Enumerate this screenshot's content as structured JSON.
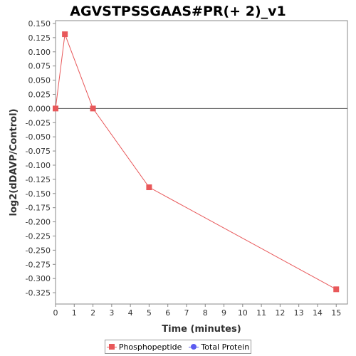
{
  "chart_data": {
    "type": "line",
    "title": "AGVSTPSSGAAS#PR(+ 2)_v1",
    "xlabel": "Time (minutes)",
    "ylabel": "log2(dDAVP/Control)",
    "xlim": [
      0,
      15.6
    ],
    "ylim": [
      -0.345,
      0.155
    ],
    "x_ticks": [
      0,
      1,
      2,
      3,
      4,
      5,
      6,
      7,
      8,
      9,
      10,
      11,
      12,
      13,
      14,
      15
    ],
    "y_ticks": [
      0.15,
      0.125,
      0.1,
      0.075,
      0.05,
      0.025,
      0.0,
      -0.025,
      -0.05,
      -0.075,
      -0.1,
      -0.125,
      -0.15,
      -0.175,
      -0.2,
      -0.225,
      -0.25,
      -0.275,
      -0.3,
      -0.325
    ],
    "y_tick_labels": [
      "0.150",
      "0.125",
      "0.100",
      "0.075",
      "0.050",
      "0.025",
      "0.000",
      "-0.025",
      "-0.050",
      "-0.075",
      "-0.100",
      "-0.125",
      "-0.150",
      "-0.175",
      "-0.200",
      "-0.225",
      "-0.250",
      "-0.275",
      "-0.300",
      "-0.325"
    ],
    "reference_line_y": 0,
    "grid": false,
    "legend_position": "bottom",
    "series": [
      {
        "name": "Phosphopeptide",
        "color": "#e8585a",
        "marker": "square",
        "x": [
          0,
          0.5,
          2,
          5,
          15
        ],
        "y": [
          0.0,
          0.131,
          0.0,
          -0.139,
          -0.319
        ]
      },
      {
        "name": "Total Protein",
        "color": "#5b5bf0",
        "marker": "circle",
        "x": [],
        "y": []
      }
    ]
  }
}
